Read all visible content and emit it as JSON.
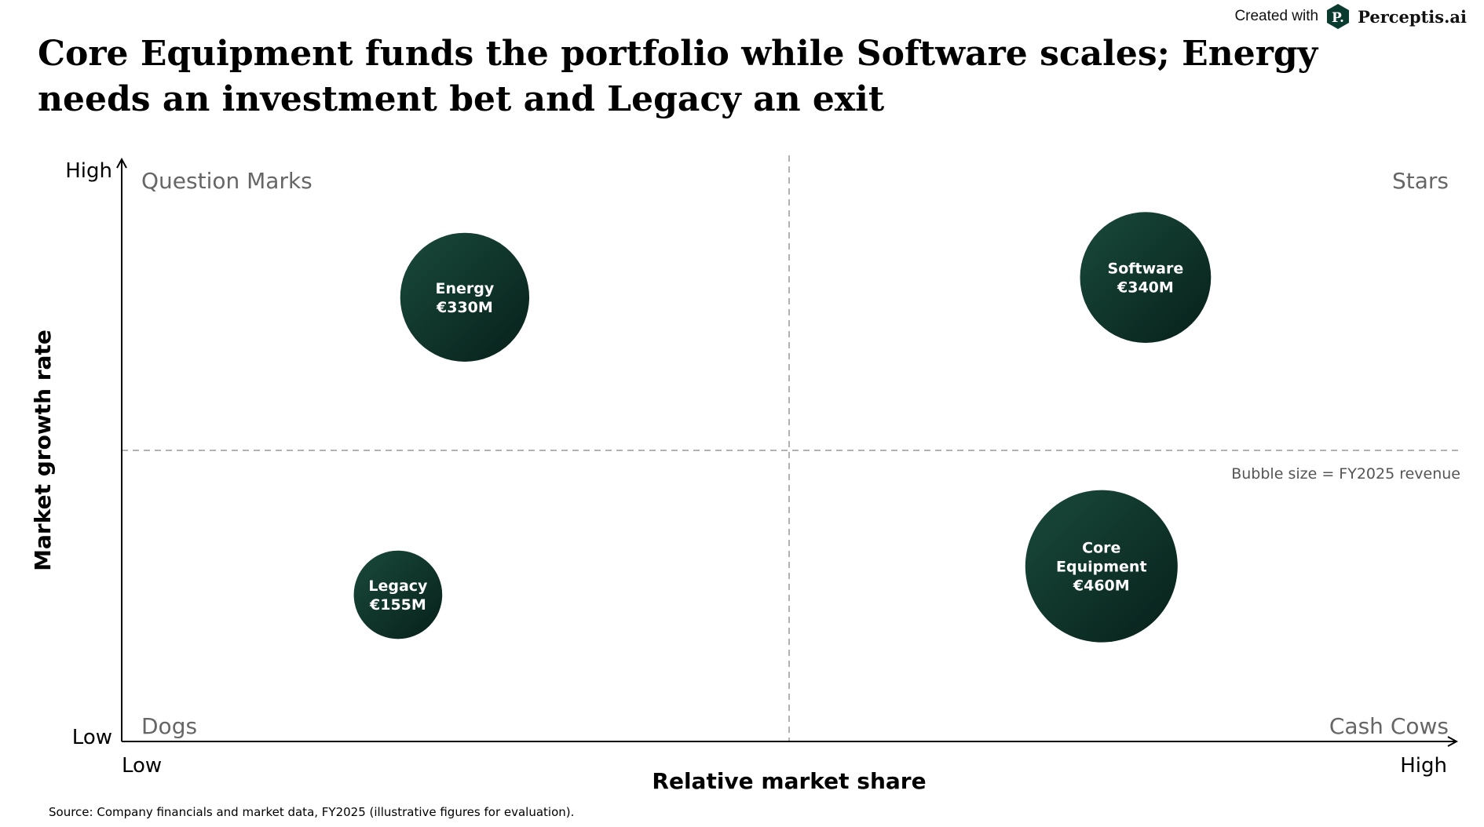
{
  "brand": {
    "prefix": "Created with",
    "name": "Perceptis.ai",
    "logo_letter": "P."
  },
  "title": "Core Equipment funds the portfolio while Software scales; Energy needs an investment bet and Legacy an exit",
  "source": "Source: Company financials and market data, FY2025 (illustrative figures for evaluation).",
  "chart_data": {
    "type": "scatter",
    "subtype": "bubble-matrix",
    "xlabel": "Relative market share",
    "ylabel": "Market growth rate",
    "x_ticks": {
      "low": "Low",
      "high": "High"
    },
    "y_ticks": {
      "low": "Low",
      "high": "High"
    },
    "xlim": [
      0,
      1
    ],
    "ylim": [
      0,
      1
    ],
    "dividers": {
      "x": 0.5,
      "y": 0.5
    },
    "quadrants": {
      "top_left": "Question Marks",
      "top_right": "Stars",
      "bottom_left": "Dogs",
      "bottom_right": "Cash Cows"
    },
    "size_note": "Bubble size = FY2025 revenue",
    "grid": false,
    "colors": {
      "bubble_light": "#1a4a3c",
      "bubble_dark": "#06201a",
      "divider": "#999999",
      "axis": "#000000"
    },
    "points": [
      {
        "name": "Energy",
        "label_lines": [
          "Energy",
          "€330M"
        ],
        "revenue": 330,
        "x": 0.257,
        "y": 0.763
      },
      {
        "name": "Software",
        "label_lines": [
          "Software",
          "€340M"
        ],
        "revenue": 340,
        "x": 0.767,
        "y": 0.797
      },
      {
        "name": "Core Equipment",
        "label_lines": [
          "Core",
          "Equipment",
          "€460M"
        ],
        "revenue": 460,
        "x": 0.734,
        "y": 0.301
      },
      {
        "name": "Legacy",
        "label_lines": [
          "Legacy",
          "€155M"
        ],
        "revenue": 155,
        "x": 0.207,
        "y": 0.252
      }
    ]
  }
}
